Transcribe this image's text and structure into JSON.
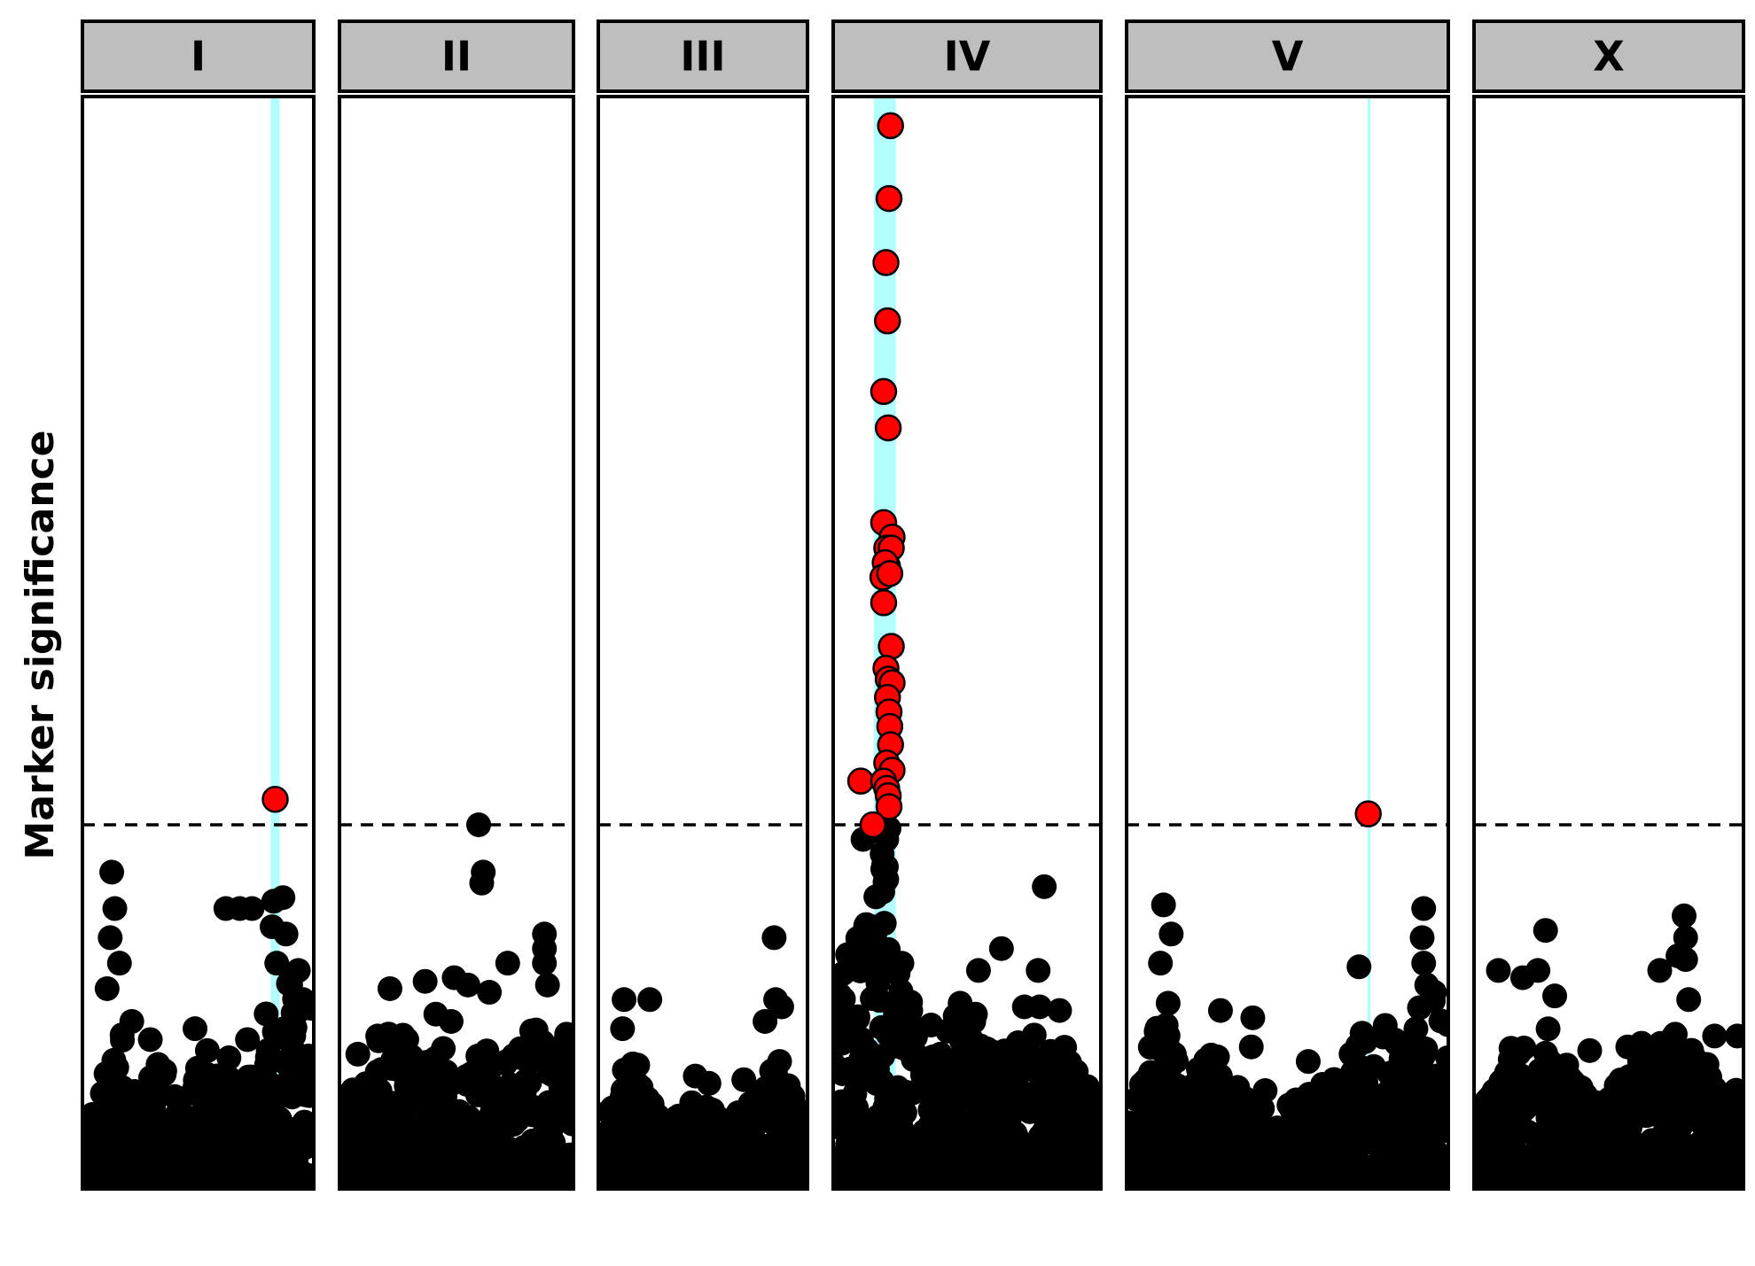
{
  "chart_data": {
    "type": "scatter",
    "title": "",
    "ylabel": "Marker significance",
    "xlabel": "",
    "ylim": [
      0,
      15
    ],
    "threshold": 5.0,
    "threshold_style": "dashed",
    "grid": false,
    "legend": "none",
    "colors": {
      "significant": "#ff0000",
      "nonsignificant": "#000000",
      "interval": "#b3ffff",
      "strip_fill": "#bebebe",
      "panel_border": "#000000",
      "threshold_line": "#000000"
    },
    "panels": [
      {
        "name": "I",
        "xlim": [
          0,
          15.0
        ],
        "intervals": [
          [
            12.2,
            12.8
          ]
        ],
        "significant_points": [
          [
            12.5,
            5.35
          ]
        ],
        "peak_points": [
          [
            1.9,
            4.35
          ],
          [
            2.1,
            3.85
          ],
          [
            1.8,
            3.45
          ],
          [
            2.4,
            3.1
          ],
          [
            1.6,
            2.75
          ],
          [
            3.2,
            2.3
          ],
          [
            4.4,
            2.05
          ],
          [
            7.3,
            2.2
          ],
          [
            9.3,
            3.85
          ],
          [
            10.2,
            3.85
          ],
          [
            11.0,
            3.85
          ],
          [
            12.4,
            3.95
          ],
          [
            13.0,
            4.0
          ],
          [
            12.3,
            3.6
          ],
          [
            13.2,
            3.5
          ],
          [
            12.6,
            3.1
          ],
          [
            14.0,
            3.0
          ],
          [
            13.5,
            2.8
          ],
          [
            14.3,
            2.6
          ],
          [
            8.1,
            1.9
          ],
          [
            9.5,
            1.8
          ],
          [
            10.7,
            2.05
          ]
        ],
        "bulk_profile": [
          [
            0,
            0.6
          ],
          [
            1.5,
            1.6
          ],
          [
            2.5,
            2.6
          ],
          [
            3.5,
            1.4
          ],
          [
            5.0,
            1.8
          ],
          [
            6.5,
            1.2
          ],
          [
            7.5,
            1.7
          ],
          [
            9.0,
            1.6
          ],
          [
            10.5,
            1.4
          ],
          [
            11.5,
            2.0
          ],
          [
            12.5,
            3.0
          ],
          [
            13.5,
            2.8
          ],
          [
            15.0,
            2.6
          ]
        ]
      },
      {
        "name": "II",
        "xlim": [
          0,
          15.3
        ],
        "intervals": [],
        "significant_points": [],
        "peak_points": [
          [
            9.1,
            5.0
          ],
          [
            9.4,
            4.35
          ],
          [
            9.3,
            4.2
          ],
          [
            11.0,
            3.1
          ],
          [
            13.4,
            3.5
          ],
          [
            13.4,
            3.3
          ],
          [
            13.4,
            3.1
          ],
          [
            13.6,
            2.8
          ],
          [
            3.3,
            2.75
          ],
          [
            5.6,
            2.85
          ],
          [
            7.5,
            2.9
          ],
          [
            8.4,
            2.8
          ],
          [
            9.8,
            2.7
          ],
          [
            6.3,
            2.4
          ],
          [
            7.3,
            2.3
          ],
          [
            1.2,
            1.85
          ],
          [
            2.5,
            2.1
          ],
          [
            4.4,
            2.05
          ]
        ],
        "bulk_profile": [
          [
            0,
            1.4
          ],
          [
            1.0,
            1.5
          ],
          [
            2.0,
            1.9
          ],
          [
            3.5,
            2.3
          ],
          [
            5.0,
            1.9
          ],
          [
            6.5,
            2.1
          ],
          [
            8.0,
            1.8
          ],
          [
            9.5,
            2.0
          ],
          [
            11.0,
            1.9
          ],
          [
            12.5,
            2.2
          ],
          [
            14.0,
            2.4
          ],
          [
            15.3,
            2.2
          ]
        ]
      },
      {
        "name": "III",
        "xlim": [
          0,
          13.8
        ],
        "intervals": [],
        "significant_points": [],
        "peak_points": [
          [
            11.6,
            3.45
          ],
          [
            1.7,
            2.6
          ],
          [
            3.4,
            2.6
          ],
          [
            12.1,
            2.5
          ],
          [
            11.7,
            2.6
          ],
          [
            11.0,
            2.3
          ],
          [
            1.6,
            2.2
          ],
          [
            2.6,
            1.7
          ],
          [
            6.4,
            1.55
          ],
          [
            7.3,
            1.45
          ],
          [
            9.6,
            1.5
          ]
        ],
        "bulk_profile": [
          [
            0,
            0.8
          ],
          [
            1.2,
            1.3
          ],
          [
            2.0,
            1.9
          ],
          [
            3.0,
            1.4
          ],
          [
            4.5,
            0.9
          ],
          [
            6.0,
            1.2
          ],
          [
            7.5,
            1.1
          ],
          [
            9.0,
            1.0
          ],
          [
            10.5,
            1.3
          ],
          [
            11.8,
            1.9
          ],
          [
            12.5,
            1.6
          ],
          [
            13.8,
            0.8
          ]
        ]
      },
      {
        "name": "IV",
        "xlim": [
          0,
          17.5
        ],
        "intervals": [
          [
            2.65,
            4.1
          ]
        ],
        "significant_points": [
          [
            3.75,
            14.6
          ],
          [
            3.65,
            13.6
          ],
          [
            3.45,
            12.72
          ],
          [
            3.55,
            11.92
          ],
          [
            3.3,
            10.95
          ],
          [
            3.6,
            10.45
          ],
          [
            3.3,
            9.15
          ],
          [
            3.85,
            8.95
          ],
          [
            3.5,
            8.8
          ],
          [
            3.8,
            8.8
          ],
          [
            3.55,
            8.55
          ],
          [
            3.4,
            8.6
          ],
          [
            3.25,
            8.4
          ],
          [
            3.7,
            8.45
          ],
          [
            3.3,
            8.05
          ],
          [
            3.8,
            7.45
          ],
          [
            3.45,
            7.15
          ],
          [
            3.6,
            7.0
          ],
          [
            3.85,
            6.95
          ],
          [
            3.55,
            6.75
          ],
          [
            3.65,
            6.55
          ],
          [
            3.7,
            6.35
          ],
          [
            3.75,
            6.1
          ],
          [
            3.5,
            5.85
          ],
          [
            3.85,
            5.75
          ],
          [
            1.8,
            5.6
          ],
          [
            3.3,
            5.6
          ],
          [
            3.5,
            5.5
          ],
          [
            3.6,
            5.4
          ],
          [
            3.65,
            5.25
          ],
          [
            2.6,
            5.0
          ]
        ],
        "peak_points": [
          [
            3.65,
            4.95
          ],
          [
            3.5,
            4.8
          ],
          [
            3.2,
            4.6
          ],
          [
            1.95,
            4.8
          ],
          [
            3.3,
            4.45
          ],
          [
            3.5,
            4.25
          ],
          [
            13.8,
            4.15
          ],
          [
            11.0,
            3.3
          ],
          [
            9.5,
            3.0
          ],
          [
            13.4,
            3.0
          ],
          [
            8.3,
            2.55
          ],
          [
            12.5,
            2.5
          ],
          [
            13.5,
            2.5
          ],
          [
            14.8,
            2.45
          ],
          [
            9.3,
            2.4
          ],
          [
            6.4,
            2.25
          ]
        ],
        "bulk_profile": [
          [
            0,
            3.2
          ],
          [
            1.0,
            3.6
          ],
          [
            2.0,
            3.9
          ],
          [
            2.8,
            4.3
          ],
          [
            3.5,
            4.5
          ],
          [
            4.3,
            3.5
          ],
          [
            5.5,
            2.1
          ],
          [
            7.0,
            2.2
          ],
          [
            8.5,
            2.6
          ],
          [
            10.0,
            2.0
          ],
          [
            11.5,
            1.9
          ],
          [
            12.5,
            2.3
          ],
          [
            13.5,
            2.4
          ],
          [
            15.0,
            2.0
          ],
          [
            16.5,
            1.5
          ],
          [
            17.5,
            1.3
          ]
        ]
      },
      {
        "name": "V",
        "xlim": [
          0,
          20.9
        ],
        "intervals": [
          [
            15.65,
            15.85
          ]
        ],
        "significant_points": [
          [
            15.7,
            5.15
          ]
        ],
        "peak_points": [
          [
            2.4,
            3.9
          ],
          [
            2.9,
            3.5
          ],
          [
            2.2,
            3.1
          ],
          [
            2.7,
            2.55
          ],
          [
            6.1,
            2.45
          ],
          [
            8.2,
            2.35
          ],
          [
            8.1,
            1.95
          ],
          [
            15.1,
            3.05
          ],
          [
            19.3,
            3.85
          ],
          [
            19.2,
            3.45
          ],
          [
            19.3,
            3.1
          ],
          [
            19.5,
            2.8
          ],
          [
            20.0,
            2.7
          ],
          [
            11.8,
            1.75
          ],
          [
            9.0,
            1.35
          ]
        ],
        "bulk_profile": [
          [
            0,
            1.0
          ],
          [
            1.3,
            1.9
          ],
          [
            2.5,
            2.6
          ],
          [
            4.0,
            1.4
          ],
          [
            5.0,
            1.8
          ],
          [
            6.0,
            1.9
          ],
          [
            7.5,
            1.4
          ],
          [
            9.5,
            1.0
          ],
          [
            11.5,
            1.3
          ],
          [
            13.0,
            1.5
          ],
          [
            14.5,
            1.9
          ],
          [
            15.5,
            2.2
          ],
          [
            16.5,
            2.3
          ],
          [
            18.0,
            2.1
          ],
          [
            19.5,
            2.7
          ],
          [
            20.9,
            2.5
          ]
        ]
      },
      {
        "name": "X",
        "xlim": [
          0,
          17.7
        ],
        "intervals": [],
        "significant_points": [],
        "peak_points": [
          [
            4.7,
            3.55
          ],
          [
            13.8,
            3.75
          ],
          [
            13.9,
            3.45
          ],
          [
            13.4,
            3.2
          ],
          [
            13.9,
            3.15
          ],
          [
            1.6,
            3.0
          ],
          [
            3.2,
            2.9
          ],
          [
            4.2,
            3.0
          ],
          [
            5.3,
            2.65
          ],
          [
            12.2,
            3.0
          ],
          [
            14.1,
            2.6
          ],
          [
            15.8,
            2.1
          ],
          [
            17.3,
            2.1
          ],
          [
            7.6,
            1.9
          ],
          [
            10.1,
            1.95
          ],
          [
            11.0,
            2.0
          ]
        ],
        "bulk_profile": [
          [
            0,
            0.9
          ],
          [
            1.3,
            1.4
          ],
          [
            2.3,
            1.9
          ],
          [
            3.5,
            2.3
          ],
          [
            4.5,
            2.6
          ],
          [
            5.5,
            1.9
          ],
          [
            7.0,
            1.4
          ],
          [
            8.5,
            1.2
          ],
          [
            10.0,
            1.6
          ],
          [
            11.5,
            1.9
          ],
          [
            12.5,
            2.1
          ],
          [
            13.5,
            2.3
          ],
          [
            14.5,
            1.9
          ],
          [
            16.0,
            1.6
          ],
          [
            17.7,
            1.4
          ]
        ]
      }
    ]
  }
}
